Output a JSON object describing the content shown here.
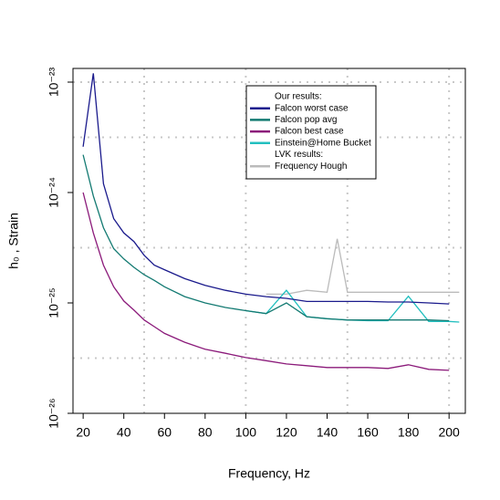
{
  "chart_data": {
    "type": "line",
    "xlabel": "Frequency, Hz",
    "ylabel": "h₀ , Strain",
    "x": [
      20,
      25,
      30,
      35,
      40,
      45,
      50,
      55,
      60,
      70,
      80,
      90,
      100,
      110,
      120,
      130,
      140,
      145,
      150,
      160,
      170,
      180,
      190,
      200,
      205
    ],
    "series": [
      {
        "name": "Falcon worst case",
        "color": "#1a1a8c",
        "values": [
          2.6e-24,
          1.2e-23,
          1.2e-24,
          5.8e-25,
          4.3e-25,
          3.6e-25,
          2.7e-25,
          2.2e-25,
          2e-25,
          1.66e-25,
          1.44e-25,
          1.3e-25,
          1.2e-25,
          1.14e-25,
          1.1e-25,
          1.03e-25,
          1.03e-25,
          1.03e-25,
          1.03e-25,
          1.03e-25,
          1.02e-25,
          1.02e-25,
          1e-25,
          9.8e-26,
          null
        ]
      },
      {
        "name": "Falcon pop avg",
        "color": "#137a72",
        "values": [
          2.2e-24,
          9.3e-25,
          4.8e-25,
          3.1e-25,
          2.5e-25,
          2.1e-25,
          1.8e-25,
          1.6e-25,
          1.4e-25,
          1.14e-25,
          1e-25,
          9.1e-26,
          8.5e-26,
          8e-26,
          1e-25,
          7.5e-26,
          7.2e-26,
          7.1e-26,
          7e-26,
          7e-26,
          7e-26,
          7e-26,
          7e-26,
          6.9e-26,
          null
        ]
      },
      {
        "name": "Falcon best case",
        "color": "#8b1a7a",
        "values": [
          1e-24,
          4.3e-25,
          2.2e-25,
          1.4e-25,
          1.04e-25,
          8.6e-26,
          7e-26,
          6.1e-26,
          5.3e-26,
          4.4e-26,
          3.8e-26,
          3.5e-26,
          3.2e-26,
          3e-26,
          2.8e-26,
          2.7e-26,
          2.6e-26,
          2.6e-26,
          2.6e-26,
          2.6e-26,
          2.55e-26,
          2.75e-26,
          2.5e-26,
          2.45e-26,
          null
        ]
      },
      {
        "name": "Einstein@Home Bucket",
        "color": "#22bfbf",
        "values": [
          null,
          null,
          null,
          null,
          null,
          null,
          null,
          null,
          null,
          null,
          null,
          null,
          8.5e-26,
          8e-26,
          1.3e-25,
          7.5e-26,
          7.2e-26,
          7.1e-26,
          7e-26,
          6.9e-26,
          6.9e-26,
          1.15e-25,
          6.8e-26,
          6.8e-26,
          6.7e-26
        ]
      },
      {
        "name": "Frequency Hough",
        "color": "#bbbbbb",
        "values": [
          null,
          null,
          null,
          null,
          null,
          null,
          null,
          null,
          null,
          null,
          null,
          null,
          null,
          1.2e-25,
          1.2e-25,
          1.3e-25,
          1.25e-25,
          3.8e-25,
          1.25e-25,
          1.25e-25,
          1.25e-25,
          1.25e-25,
          1.25e-25,
          1.25e-25,
          1.25e-25
        ]
      }
    ],
    "legend_titles": [
      "Our results:",
      "LVK results:"
    ],
    "xlim": [
      15,
      208
    ],
    "ylim": [
      1e-26,
      1.33e-23
    ],
    "xticks": [
      20,
      40,
      60,
      80,
      100,
      120,
      140,
      160,
      180,
      200
    ],
    "yticks": [
      {
        "value": 1e-26,
        "label": "10⁻²⁶"
      },
      {
        "value": 1e-25,
        "label": "10⁻²⁵"
      },
      {
        "value": 1e-24,
        "label": "10⁻²⁴"
      },
      {
        "value": 1e-23,
        "label": "10⁻²³"
      }
    ],
    "xgrid": [
      50,
      100,
      150,
      200
    ],
    "ygrid": [
      3.16e-26,
      3.16e-25,
      3.16e-24,
      1e-23
    ],
    "log_y": true
  }
}
